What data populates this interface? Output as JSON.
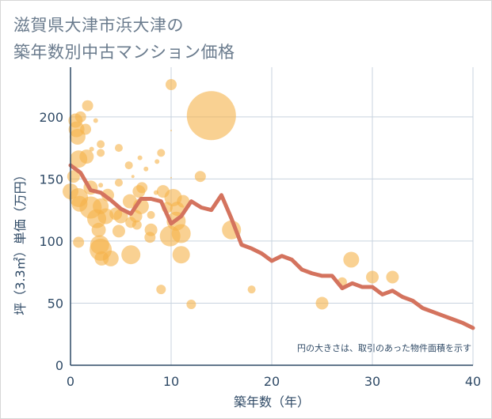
{
  "title_line1": "滋賀県大津市浜大津の",
  "title_line2": "築年数別中古マンション価格",
  "chart_data": {
    "type": "scatter",
    "xlabel": "築年数（年）",
    "ylabel": "坪（3.3㎡）単価（万円）",
    "xlim": [
      0,
      40
    ],
    "ylim": [
      0,
      240
    ],
    "xticks": [
      0,
      10,
      20,
      30,
      40
    ],
    "yticks": [
      0,
      50,
      100,
      150,
      200
    ],
    "grid": true,
    "note": "円の大きさは、取引のあった物件面積を示す",
    "bubble_color": "#f5b24a",
    "line_color": "#d4735e",
    "bubbles": [
      {
        "x": 0.0,
        "y": 140,
        "s": 10
      },
      {
        "x": 0.3,
        "y": 152,
        "s": 8
      },
      {
        "x": 0.5,
        "y": 197,
        "s": 9
      },
      {
        "x": 0.6,
        "y": 190,
        "s": 10
      },
      {
        "x": 0.7,
        "y": 184,
        "s": 10
      },
      {
        "x": 0.8,
        "y": 166,
        "s": 11
      },
      {
        "x": 0.8,
        "y": 135,
        "s": 12
      },
      {
        "x": 0.9,
        "y": 130,
        "s": 10
      },
      {
        "x": 0.8,
        "y": 99,
        "s": 7
      },
      {
        "x": 1.0,
        "y": 200,
        "s": 7
      },
      {
        "x": 1.5,
        "y": 190,
        "s": 7
      },
      {
        "x": 1.7,
        "y": 209,
        "s": 7
      },
      {
        "x": 1.6,
        "y": 168,
        "s": 9
      },
      {
        "x": 2.0,
        "y": 143,
        "s": 9
      },
      {
        "x": 2.0,
        "y": 127,
        "s": 14
      },
      {
        "x": 2.1,
        "y": 174,
        "s": 3
      },
      {
        "x": 2.5,
        "y": 197,
        "s": 3
      },
      {
        "x": 2.6,
        "y": 118,
        "s": 12
      },
      {
        "x": 2.8,
        "y": 109,
        "s": 9
      },
      {
        "x": 2.9,
        "y": 97,
        "s": 12
      },
      {
        "x": 3.0,
        "y": 93,
        "s": 14
      },
      {
        "x": 3.1,
        "y": 86,
        "s": 9
      },
      {
        "x": 3.0,
        "y": 178,
        "s": 5
      },
      {
        "x": 3.0,
        "y": 171,
        "s": 5
      },
      {
        "x": 3.0,
        "y": 145,
        "s": 3
      },
      {
        "x": 3.0,
        "y": 128,
        "s": 10
      },
      {
        "x": 3.5,
        "y": 120,
        "s": 10
      },
      {
        "x": 3.7,
        "y": 137,
        "s": 8
      },
      {
        "x": 4.0,
        "y": 86,
        "s": 10
      },
      {
        "x": 4.5,
        "y": 122,
        "s": 8
      },
      {
        "x": 4.8,
        "y": 147,
        "s": 5
      },
      {
        "x": 4.8,
        "y": 175,
        "s": 5
      },
      {
        "x": 4.8,
        "y": 108,
        "s": 8
      },
      {
        "x": 5.0,
        "y": 120,
        "s": 9
      },
      {
        "x": 5.8,
        "y": 161,
        "s": 5
      },
      {
        "x": 5.9,
        "y": 132,
        "s": 9
      },
      {
        "x": 6.0,
        "y": 89,
        "s": 12
      },
      {
        "x": 6.0,
        "y": 115,
        "s": 7
      },
      {
        "x": 6.2,
        "y": 152,
        "s": 2
      },
      {
        "x": 6.5,
        "y": 120,
        "s": 8
      },
      {
        "x": 6.6,
        "y": 113,
        "s": 6
      },
      {
        "x": 6.8,
        "y": 140,
        "s": 8
      },
      {
        "x": 6.9,
        "y": 167,
        "s": 3
      },
      {
        "x": 7.0,
        "y": 128,
        "s": 10
      },
      {
        "x": 7.1,
        "y": 143,
        "s": 7
      },
      {
        "x": 7.5,
        "y": 158,
        "s": 3
      },
      {
        "x": 7.9,
        "y": 103,
        "s": 7
      },
      {
        "x": 8.0,
        "y": 109,
        "s": 8
      },
      {
        "x": 8.0,
        "y": 121,
        "s": 5
      },
      {
        "x": 8.5,
        "y": 139,
        "s": 3
      },
      {
        "x": 8.6,
        "y": 164,
        "s": 3
      },
      {
        "x": 9.0,
        "y": 171,
        "s": 5
      },
      {
        "x": 9.0,
        "y": 61,
        "s": 6
      },
      {
        "x": 9.2,
        "y": 140,
        "s": 8
      },
      {
        "x": 9.6,
        "y": 127,
        "s": 7
      },
      {
        "x": 9.9,
        "y": 104,
        "s": 13
      },
      {
        "x": 10.0,
        "y": 226,
        "s": 7
      },
      {
        "x": 10.0,
        "y": 189,
        "s": 1
      },
      {
        "x": 10.0,
        "y": 151,
        "s": 1
      },
      {
        "x": 10.2,
        "y": 135,
        "s": 11
      },
      {
        "x": 10.5,
        "y": 116,
        "s": 12
      },
      {
        "x": 10.6,
        "y": 126,
        "s": 9
      },
      {
        "x": 11.0,
        "y": 106,
        "s": 12
      },
      {
        "x": 11.0,
        "y": 89,
        "s": 11
      },
      {
        "x": 11.2,
        "y": 132,
        "s": 8
      },
      {
        "x": 12.0,
        "y": 49,
        "s": 6
      },
      {
        "x": 12.9,
        "y": 152,
        "s": 7
      },
      {
        "x": 14.0,
        "y": 201,
        "s": 31
      },
      {
        "x": 16.0,
        "y": 109,
        "s": 12
      },
      {
        "x": 18.0,
        "y": 61,
        "s": 5
      },
      {
        "x": 25.0,
        "y": 50,
        "s": 8
      },
      {
        "x": 27.0,
        "y": 67,
        "s": 6
      },
      {
        "x": 27.9,
        "y": 85,
        "s": 10
      },
      {
        "x": 30.0,
        "y": 71,
        "s": 8
      },
      {
        "x": 32.0,
        "y": 71,
        "s": 8
      }
    ],
    "line": {
      "x": [
        0,
        1,
        2,
        3,
        4,
        5,
        6,
        7,
        8,
        9,
        10,
        11,
        12,
        13,
        14,
        15,
        16,
        17,
        18,
        19,
        20,
        21,
        22,
        23,
        24,
        25,
        26,
        27,
        28,
        29,
        30,
        31,
        32,
        33,
        34,
        35,
        36,
        37,
        38,
        39,
        40
      ],
      "y": [
        161,
        155,
        141,
        139,
        133,
        126,
        122,
        134,
        134,
        132,
        114,
        120,
        132,
        127,
        125,
        137,
        118,
        97,
        94,
        90,
        84,
        88,
        85,
        77,
        74,
        72,
        72,
        62,
        66,
        63,
        63,
        57,
        60,
        55,
        52,
        46,
        43,
        40,
        37,
        34,
        30
      ]
    }
  }
}
